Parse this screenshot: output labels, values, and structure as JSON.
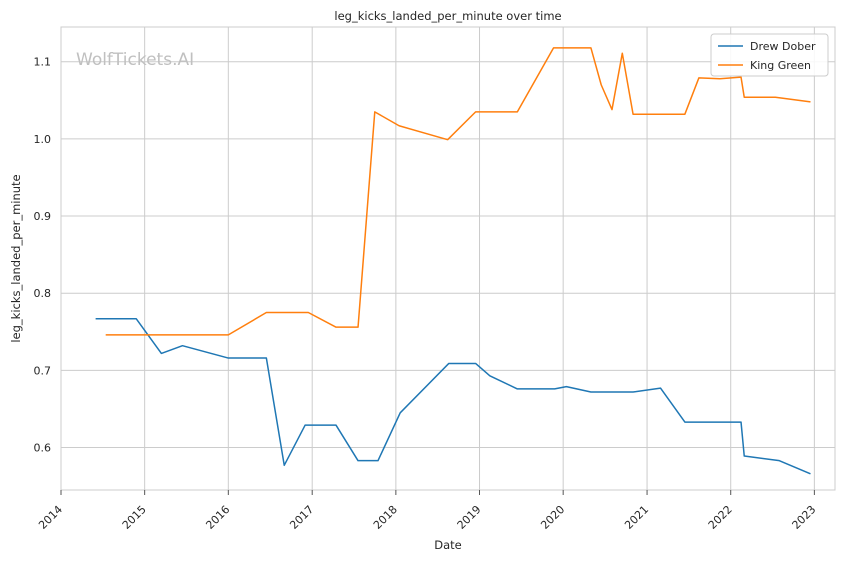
{
  "chart_data": {
    "type": "line",
    "title": "leg_kicks_landed_per_minute over time",
    "xlabel": "Date",
    "ylabel": "leg_kicks_landed_per_minute",
    "watermark": "WolfTickets.AI",
    "xlim": [
      "2014-01-01",
      "2023-04-01"
    ],
    "ylim": [
      0.545,
      1.145
    ],
    "x_ticks": [
      "2014",
      "2015",
      "2016",
      "2017",
      "2018",
      "2019",
      "2020",
      "2021",
      "2022",
      "2023"
    ],
    "y_ticks": [
      0.6,
      0.7,
      0.8,
      0.9,
      1.0,
      1.1
    ],
    "grid": true,
    "legend": "top-right",
    "series": [
      {
        "name": "Drew Dober",
        "color": "#1f77b4",
        "points": [
          [
            "2014-06-01",
            0.767
          ],
          [
            "2014-11-25",
            0.767
          ],
          [
            "2015-03-15",
            0.722
          ],
          [
            "2015-06-15",
            0.732
          ],
          [
            "2016-01-01",
            0.716
          ],
          [
            "2016-06-15",
            0.716
          ],
          [
            "2016-09-01",
            0.577
          ],
          [
            "2016-12-01",
            0.629
          ],
          [
            "2017-04-15",
            0.629
          ],
          [
            "2017-07-20",
            0.583
          ],
          [
            "2017-10-15",
            0.583
          ],
          [
            "2018-01-20",
            0.645
          ],
          [
            "2018-08-20",
            0.709
          ],
          [
            "2018-12-15",
            0.709
          ],
          [
            "2019-02-15",
            0.693
          ],
          [
            "2019-06-15",
            0.676
          ],
          [
            "2019-11-25",
            0.676
          ],
          [
            "2020-01-15",
            0.679
          ],
          [
            "2020-05-01",
            0.672
          ],
          [
            "2020-11-01",
            0.672
          ],
          [
            "2021-03-01",
            0.677
          ],
          [
            "2021-06-15",
            0.633
          ],
          [
            "2022-02-15",
            0.633
          ],
          [
            "2022-03-01",
            0.589
          ],
          [
            "2022-08-01",
            0.583
          ],
          [
            "2022-12-15",
            0.566
          ]
        ]
      },
      {
        "name": "King Green",
        "color": "#ff7f0e",
        "points": [
          [
            "2014-07-15",
            0.746
          ],
          [
            "2016-01-01",
            0.746
          ],
          [
            "2016-06-15",
            0.775
          ],
          [
            "2016-12-15",
            0.775
          ],
          [
            "2017-04-15",
            0.756
          ],
          [
            "2017-07-20",
            0.756
          ],
          [
            "2017-10-01",
            1.035
          ],
          [
            "2018-01-15",
            1.017
          ],
          [
            "2018-08-15",
            0.999
          ],
          [
            "2018-12-15",
            1.035
          ],
          [
            "2019-06-15",
            1.035
          ],
          [
            "2019-11-20",
            1.118
          ],
          [
            "2020-05-01",
            1.118
          ],
          [
            "2020-06-15",
            1.07
          ],
          [
            "2020-08-01",
            1.038
          ],
          [
            "2020-09-15",
            1.111
          ],
          [
            "2020-11-01",
            1.032
          ],
          [
            "2021-06-15",
            1.032
          ],
          [
            "2021-08-15",
            1.079
          ],
          [
            "2021-11-15",
            1.078
          ],
          [
            "2022-02-15",
            1.08
          ],
          [
            "2022-03-01",
            1.054
          ],
          [
            "2022-07-15",
            1.054
          ],
          [
            "2022-12-15",
            1.048
          ]
        ]
      }
    ]
  }
}
